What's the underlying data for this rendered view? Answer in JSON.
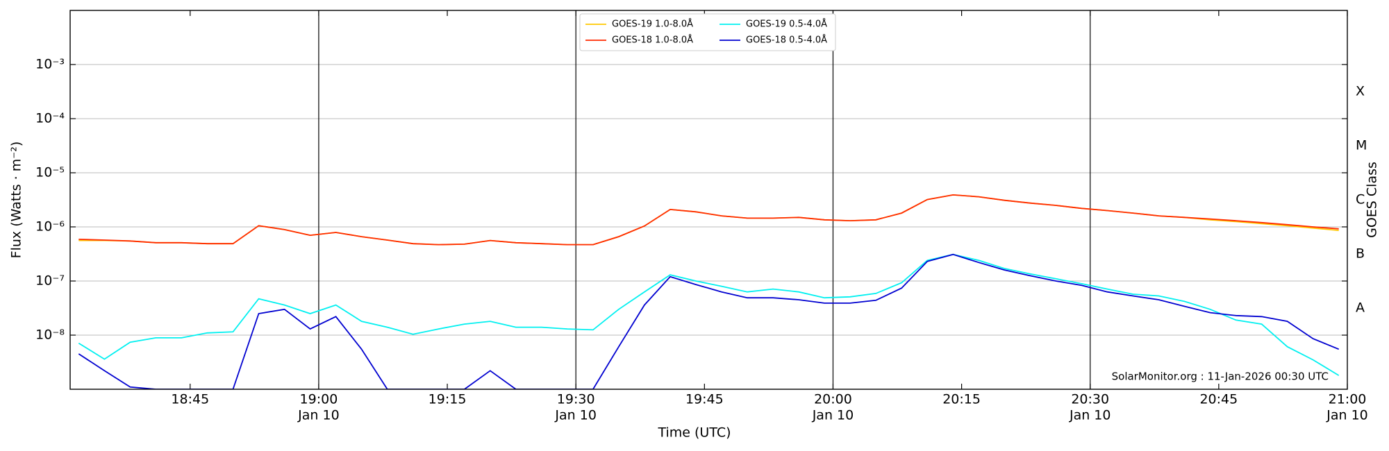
{
  "chart_data": {
    "type": "line",
    "xlabel": "Time (UTC)",
    "ylabel": "Flux (Watts · m⁻²)",
    "y2label": "GOES Class",
    "annotation": "SolarMonitor.org : 11-Jan-2026 00:30 UTC",
    "log_y": true,
    "grid": true,
    "legend": "upper center",
    "xlim": [
      "18:31",
      "21:00"
    ],
    "xticks": [
      "18:45",
      {
        "value": "19:00",
        "label": "19:00",
        "date": "Jan 10"
      },
      "19:15",
      {
        "value": "19:30",
        "label": "19:30",
        "date": "Jan 10"
      },
      "19:45",
      {
        "value": "20:00",
        "label": "20:00",
        "date": "Jan 10"
      },
      "20:15",
      {
        "value": "20:30",
        "label": "20:30",
        "date": "Jan 10"
      },
      "20:45",
      {
        "value": "21:00",
        "label": "21:00",
        "date": "Jan 10"
      }
    ],
    "vlines": [
      "19:00",
      "19:30",
      "20:00",
      "20:30"
    ],
    "ylim": [
      1e-09,
      0.01
    ],
    "yticks": [
      {
        "value": 1e-08,
        "label": "10⁻⁸"
      },
      {
        "value": 1e-07,
        "label": "10⁻⁷"
      },
      {
        "value": 1e-06,
        "label": "10⁻⁶"
      },
      {
        "value": 1e-05,
        "label": "10⁻⁵"
      },
      {
        "value": 0.0001,
        "label": "10⁻⁴"
      },
      {
        "value": 0.001,
        "label": "10⁻³"
      }
    ],
    "y2lim": [
      1e-09,
      0.01
    ],
    "y2ticks": [
      {
        "value": 3.162e-08,
        "label": "A"
      },
      {
        "value": 3.162e-07,
        "label": "B"
      },
      {
        "value": 3.162e-06,
        "label": "C"
      },
      {
        "value": 3.162e-05,
        "label": "M"
      },
      {
        "value": 0.0003162,
        "label": "X"
      }
    ],
    "x": [
      "18:32",
      "18:35",
      "18:38",
      "18:41",
      "18:44",
      "18:47",
      "18:50",
      "18:53",
      "18:56",
      "18:59",
      "19:02",
      "19:05",
      "19:08",
      "19:11",
      "19:14",
      "19:17",
      "19:20",
      "19:23",
      "19:26",
      "19:29",
      "19:32",
      "19:35",
      "19:38",
      "19:41",
      "19:44",
      "19:47",
      "19:50",
      "19:53",
      "19:56",
      "19:59",
      "20:02",
      "20:05",
      "20:08",
      "20:11",
      "20:14",
      "20:17",
      "20:20",
      "20:23",
      "20:26",
      "20:29",
      "20:32",
      "20:35",
      "20:38",
      "20:41",
      "20:44",
      "20:47",
      "20:50",
      "20:53",
      "20:56",
      "20:59"
    ],
    "series": [
      {
        "name": "GOES-19 1.0-8.0Å",
        "color": "#ffc800",
        "values": [
          5.6e-07,
          5.6e-07,
          5.5e-07,
          5.1e-07,
          5.1e-07,
          4.9e-07,
          4.9e-07,
          1.05e-06,
          8.9e-07,
          7e-07,
          7.9e-07,
          6.6e-07,
          5.7e-07,
          4.9e-07,
          4.7e-07,
          4.8e-07,
          5.6e-07,
          5.1e-07,
          4.9e-07,
          4.7e-07,
          4.7e-07,
          6.6e-07,
          1.04e-06,
          2.1e-06,
          1.9e-06,
          1.6e-06,
          1.45e-06,
          1.45e-06,
          1.5e-06,
          1.35e-06,
          1.3e-06,
          1.35e-06,
          1.8e-06,
          3.2e-06,
          3.9e-06,
          3.6e-06,
          3.1e-06,
          2.75e-06,
          2.5e-06,
          2.2e-06,
          2e-06,
          1.8e-06,
          1.6e-06,
          1.5e-06,
          1.35e-06,
          1.25e-06,
          1.15e-06,
          1.05e-06,
          9.5e-07,
          8.6e-07
        ]
      },
      {
        "name": "GOES-18 1.0-8.0Å",
        "color": "#ff2a00",
        "values": [
          5.9e-07,
          5.7e-07,
          5.5e-07,
          5.1e-07,
          5.1e-07,
          4.9e-07,
          4.9e-07,
          1.05e-06,
          8.9e-07,
          7e-07,
          7.9e-07,
          6.6e-07,
          5.7e-07,
          4.9e-07,
          4.7e-07,
          4.8e-07,
          5.6e-07,
          5.1e-07,
          4.9e-07,
          4.7e-07,
          4.7e-07,
          6.6e-07,
          1.04e-06,
          2.1e-06,
          1.9e-06,
          1.6e-06,
          1.45e-06,
          1.45e-06,
          1.5e-06,
          1.35e-06,
          1.3e-06,
          1.35e-06,
          1.8e-06,
          3.2e-06,
          3.9e-06,
          3.6e-06,
          3.1e-06,
          2.75e-06,
          2.5e-06,
          2.2e-06,
          2e-06,
          1.8e-06,
          1.6e-06,
          1.5e-06,
          1.4e-06,
          1.3e-06,
          1.2e-06,
          1.1e-06,
          1e-06,
          9.2e-07
        ]
      },
      {
        "name": "GOES-19 0.5-4.0Å",
        "color": "#00f0f0",
        "values": [
          7.1e-09,
          3.6e-09,
          7.4e-09,
          8.9e-09,
          8.9e-09,
          1.1e-08,
          1.15e-08,
          4.7e-08,
          3.6e-08,
          2.5e-08,
          3.6e-08,
          1.8e-08,
          1.4e-08,
          1.04e-08,
          1.3e-08,
          1.6e-08,
          1.8e-08,
          1.4e-08,
          1.4e-08,
          1.3e-08,
          1.25e-08,
          3e-08,
          6.3e-08,
          1.3e-07,
          1e-07,
          8e-08,
          6.3e-08,
          7.1e-08,
          6.3e-08,
          4.9e-08,
          5.1e-08,
          5.9e-08,
          9.3e-08,
          2.4e-07,
          3.1e-07,
          2.4e-07,
          1.7e-07,
          1.35e-07,
          1.1e-07,
          8.9e-08,
          7.1e-08,
          5.7e-08,
          5.3e-08,
          4.2e-08,
          3e-08,
          1.9e-08,
          1.6e-08,
          6.1e-09,
          3.5e-09,
          1.8e-09
        ]
      },
      {
        "name": "GOES-18 0.5-4.0Å",
        "color": "#0000d0",
        "values": [
          4.5e-09,
          2.2e-09,
          1.1e-09,
          1e-09,
          1e-09,
          1e-09,
          1e-09,
          2.5e-08,
          3e-08,
          1.3e-08,
          2.2e-08,
          5.5e-09,
          1e-09,
          1e-09,
          1e-09,
          1e-09,
          2.2e-09,
          1e-09,
          1e-09,
          1e-09,
          1e-09,
          6.1e-09,
          3.6e-08,
          1.2e-07,
          8.6e-08,
          6.3e-08,
          4.9e-08,
          4.9e-08,
          4.5e-08,
          3.9e-08,
          3.9e-08,
          4.4e-08,
          7.4e-08,
          2.3e-07,
          3.1e-07,
          2.2e-07,
          1.6e-07,
          1.25e-07,
          1e-07,
          8.3e-08,
          6.3e-08,
          5.3e-08,
          4.5e-08,
          3.4e-08,
          2.6e-08,
          2.3e-08,
          2.2e-08,
          1.8e-08,
          8.6e-09,
          5.5e-09
        ]
      }
    ]
  }
}
